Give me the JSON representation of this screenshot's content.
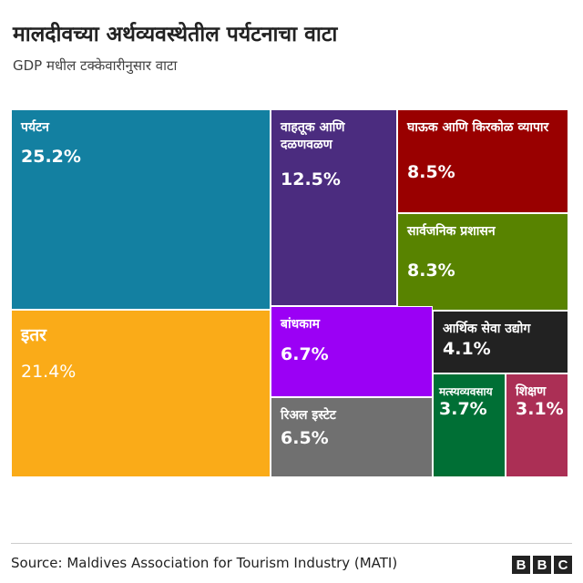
{
  "title": "मालदीवच्या अर्थव्यवस्थेतील पर्यटनाचा वाटा",
  "subtitle": "GDP मधील टक्केवारीनुसार वाटा",
  "source": "Source: Maldives Association for Tourism Industry (MATI)",
  "logo": [
    "B",
    "B",
    "C"
  ],
  "chart_data": {
    "type": "treemap",
    "title": "मालदीवच्या अर्थव्यवस्थेतील पर्यटनाचा वाटा",
    "subtitle": "GDP मधील टक्केवारीनुसार वाटा",
    "unit": "%",
    "items": [
      {
        "id": "tourism",
        "label": "पर्यटन",
        "value": 25.2,
        "value_label": "25.2%",
        "color": "#1380A1"
      },
      {
        "id": "other",
        "label": "इतर",
        "value": 21.4,
        "value_label": "21.4%",
        "color": "#FAAB18"
      },
      {
        "id": "transport",
        "label": "वाहतूक आणि दळणवळण",
        "value": 12.5,
        "value_label": "12.5%",
        "color": "#4B2C7F"
      },
      {
        "id": "trade",
        "label": "घाऊक आणि किरकोळ व्यापार",
        "value": 8.5,
        "value_label": "8.5%",
        "color": "#990000"
      },
      {
        "id": "public-admin",
        "label": "सार्वजनिक प्रशासन",
        "value": 8.3,
        "value_label": "8.3%",
        "color": "#588300"
      },
      {
        "id": "construction",
        "label": "बांधकाम",
        "value": 6.7,
        "value_label": "6.7%",
        "color": "#9B00F5"
      },
      {
        "id": "real-estate",
        "label": "रिअल इस्टेट",
        "value": 6.5,
        "value_label": "6.5%",
        "color": "#707070"
      },
      {
        "id": "financial",
        "label": "आर्थिक सेवा उद्योग",
        "value": 4.1,
        "value_label": "4.1%",
        "color": "#222222"
      },
      {
        "id": "fisheries",
        "label": "मत्स्यव्यवसाय",
        "value": 3.7,
        "value_label": "3.7%",
        "color": "#006F35"
      },
      {
        "id": "education",
        "label": "शिक्षण",
        "value": 3.1,
        "value_label": "3.1%",
        "color": "#AB2F55"
      }
    ]
  }
}
